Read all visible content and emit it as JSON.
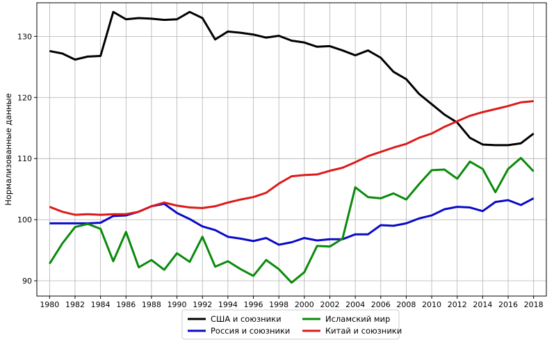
{
  "chart_data": {
    "type": "line",
    "title": "",
    "xlabel": "",
    "ylabel": "Нормализованные данные",
    "xlim": [
      1979,
      2019
    ],
    "ylim": [
      87.5,
      135.5
    ],
    "grid": true,
    "legend_position": "bottom-center",
    "x_ticks": [
      "1980",
      "1982",
      "1984",
      "1986",
      "1988",
      "1990",
      "1992",
      "1994",
      "1996",
      "1998",
      "2000",
      "2002",
      "2004",
      "2006",
      "2008",
      "2010",
      "2012",
      "2014",
      "2016",
      "2018"
    ],
    "y_ticks": [
      "90",
      "100",
      "110",
      "120",
      "130"
    ],
    "x": [
      1980,
      1981,
      1982,
      1983,
      1984,
      1985,
      1986,
      1987,
      1988,
      1989,
      1990,
      1991,
      1992,
      1993,
      1994,
      1995,
      1996,
      1997,
      1998,
      1999,
      2000,
      2001,
      2002,
      2003,
      2004,
      2005,
      2006,
      2007,
      2008,
      2009,
      2010,
      2011,
      2012,
      2013,
      2014,
      2015,
      2016,
      2017,
      2018
    ],
    "series": [
      {
        "name": "США и союзники",
        "color": "#000000",
        "values": [
          127.6,
          127.2,
          126.2,
          126.7,
          126.8,
          134.0,
          132.8,
          133.0,
          132.9,
          132.7,
          132.8,
          134.0,
          133.0,
          129.5,
          130.8,
          130.6,
          130.3,
          129.8,
          130.1,
          129.3,
          129.0,
          128.3,
          128.4,
          127.7,
          126.9,
          127.7,
          126.5,
          124.2,
          123.0,
          120.6,
          118.9,
          117.2,
          115.9,
          113.4,
          112.3,
          112.2,
          112.2,
          112.5,
          114.1
        ]
      },
      {
        "name": "Россия и союзники",
        "color": "#0a0ac8",
        "values": [
          99.4,
          99.4,
          99.4,
          99.4,
          99.5,
          100.6,
          100.7,
          101.3,
          102.2,
          102.6,
          101.1,
          100.1,
          98.9,
          98.3,
          97.2,
          96.9,
          96.5,
          97.0,
          95.9,
          96.3,
          97.0,
          96.6,
          96.8,
          96.8,
          97.6,
          97.6,
          99.1,
          99.0,
          99.4,
          100.2,
          100.7,
          101.7,
          102.1,
          102.0,
          101.4,
          102.9,
          103.2,
          102.4,
          103.5
        ]
      },
      {
        "name": "Исламский мир",
        "color": "#0a8a0a",
        "values": [
          92.8,
          96.1,
          98.8,
          99.3,
          98.5,
          93.2,
          98.0,
          92.2,
          93.4,
          91.8,
          94.5,
          93.1,
          97.2,
          92.3,
          93.2,
          91.9,
          90.8,
          93.4,
          91.9,
          89.7,
          91.4,
          95.7,
          95.6,
          96.9,
          105.3,
          103.7,
          103.5,
          104.3,
          103.3,
          105.8,
          108.1,
          108.2,
          106.7,
          109.5,
          108.3,
          104.5,
          108.3,
          110.1,
          107.9
        ]
      },
      {
        "name": "Китай и союзники",
        "color": "#dd1a1a",
        "values": [
          102.1,
          101.3,
          100.8,
          100.9,
          100.8,
          100.9,
          100.9,
          101.3,
          102.2,
          102.8,
          102.3,
          102.0,
          101.9,
          102.2,
          102.8,
          103.3,
          103.7,
          104.4,
          105.9,
          107.1,
          107.3,
          107.4,
          108.0,
          108.5,
          109.4,
          110.4,
          111.1,
          111.8,
          112.4,
          113.4,
          114.1,
          115.2,
          116.1,
          117.0,
          117.6,
          118.1,
          118.6,
          119.2,
          119.4
        ]
      }
    ]
  }
}
